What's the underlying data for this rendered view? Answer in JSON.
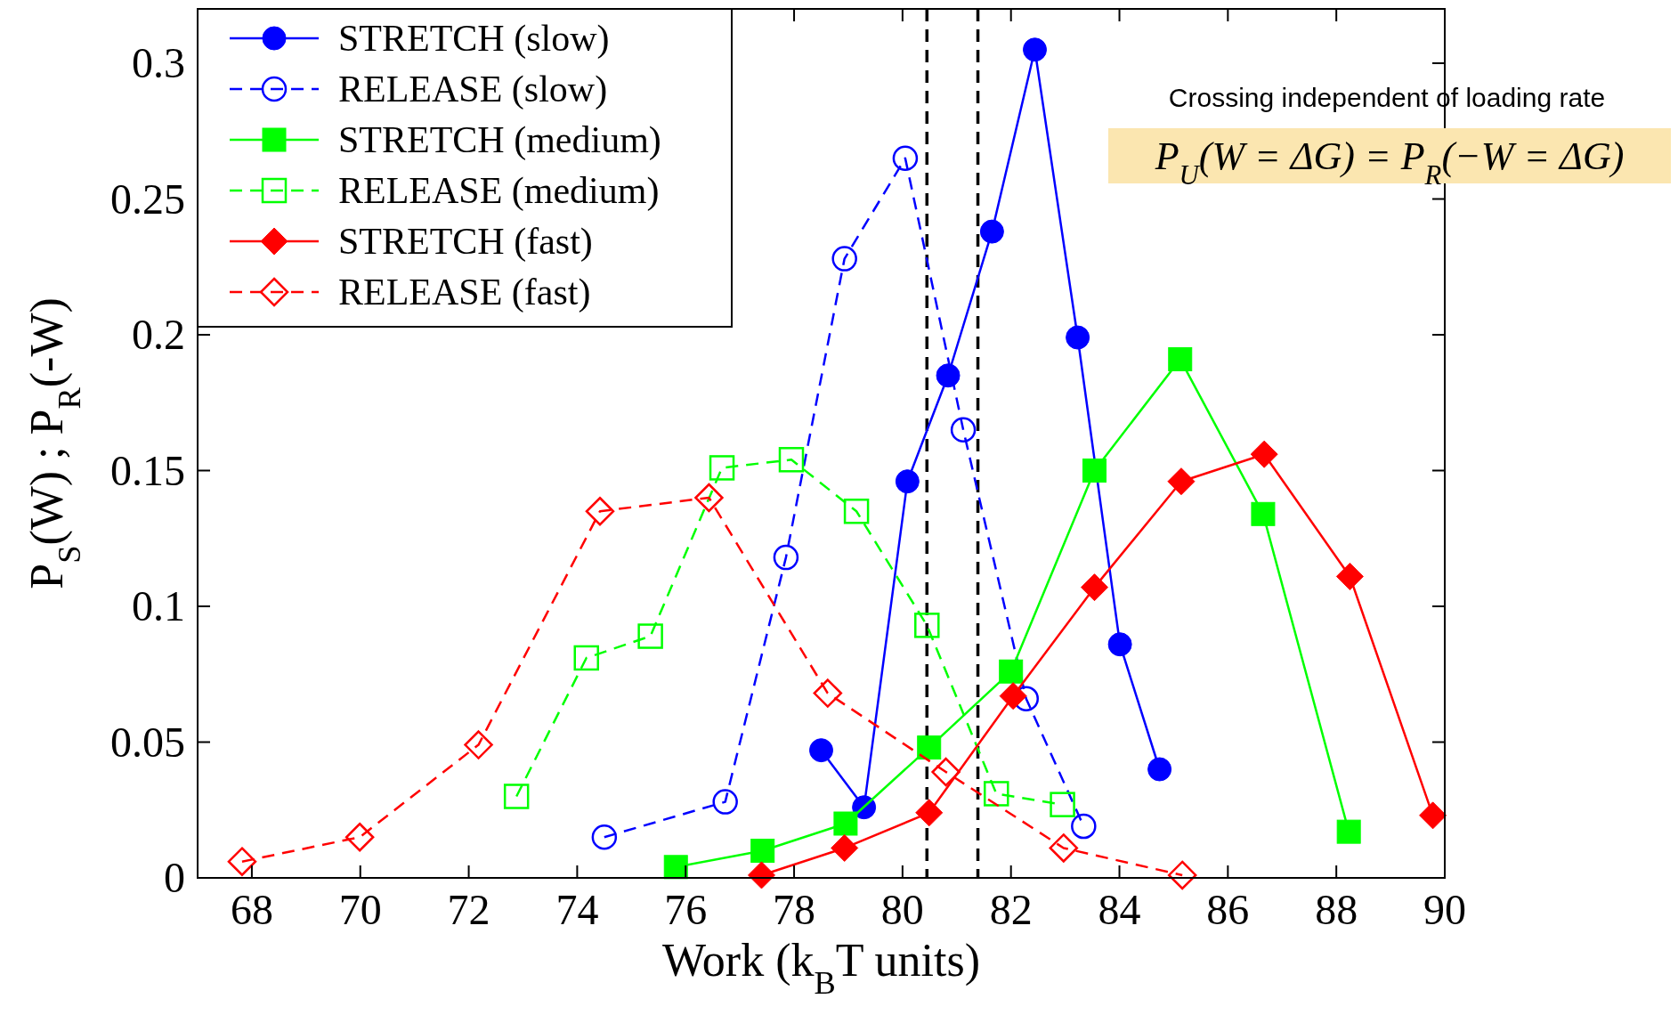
{
  "chart_data": {
    "type": "line",
    "xlabel": "Work (k$_{B}$T units)",
    "ylabel": "P$_{S}$(W) ; P$_{R}$(-W)",
    "xlim": [
      67,
      90
    ],
    "ylim": [
      0,
      0.32
    ],
    "xticks": [
      68,
      70,
      72,
      74,
      76,
      78,
      80,
      82,
      84,
      86,
      88,
      90
    ],
    "yticks": [
      0,
      0.05,
      0.1,
      0.15,
      0.2,
      0.25,
      0.3
    ],
    "legend": "top left",
    "series": [
      {
        "name": "STRETCH (slow)",
        "color": "#0000ff",
        "marker": "circle",
        "line_style": "solid",
        "x": [
          78.5,
          79.29,
          80.09,
          80.84,
          81.65,
          82.44,
          83.23,
          84.01,
          84.74
        ],
        "values": [
          0.047,
          0.026,
          0.146,
          0.185,
          0.238,
          0.305,
          0.199,
          0.086,
          0.04
        ]
      },
      {
        "name": "RELEASE (slow)",
        "color": "#0000ff",
        "marker": "circle",
        "line_style": "dashed",
        "x": [
          74.5,
          76.73,
          77.85,
          78.93,
          80.05,
          81.12,
          82.28,
          83.34
        ],
        "values": [
          0.015,
          0.028,
          0.118,
          0.228,
          0.265,
          0.165,
          0.066,
          0.019
        ]
      },
      {
        "name": "STRETCH (medium)",
        "color": "#00ff00",
        "marker": "square",
        "line_style": "solid",
        "x": [
          75.82,
          77.42,
          78.95,
          80.49,
          82.0,
          83.54,
          85.12,
          86.65,
          88.23
        ],
        "values": [
          0.004,
          0.01,
          0.02,
          0.048,
          0.076,
          0.15,
          0.191,
          0.134,
          0.017
        ]
      },
      {
        "name": "RELEASE (medium)",
        "color": "#00ff00",
        "marker": "square",
        "line_style": "dashed",
        "x": [
          72.88,
          74.17,
          75.35,
          76.67,
          77.95,
          79.15,
          80.45,
          81.73,
          82.95
        ],
        "values": [
          0.03,
          0.081,
          0.089,
          0.151,
          0.154,
          0.135,
          0.093,
          0.031,
          0.027
        ]
      },
      {
        "name": "STRETCH (fast)",
        "color": "#ff0000",
        "marker": "diamond",
        "line_style": "solid",
        "x": [
          77.4,
          78.93,
          80.49,
          82.04,
          83.54,
          85.14,
          86.67,
          88.25,
          89.78
        ],
        "values": [
          0.001,
          0.011,
          0.024,
          0.067,
          0.107,
          0.146,
          0.156,
          0.111,
          0.023
        ]
      },
      {
        "name": "RELEASE (fast)",
        "color": "#ff0000",
        "marker": "diamond",
        "line_style": "dashed",
        "x": [
          67.82,
          69.99,
          72.18,
          74.42,
          76.43,
          78.62,
          80.8,
          82.97,
          85.16
        ],
        "values": [
          0.006,
          0.015,
          0.049,
          0.135,
          0.14,
          0.068,
          0.039,
          0.011,
          0.001
        ]
      }
    ],
    "ref_lines": [
      {
        "axis": "x",
        "value": 80.45,
        "color": "#000000",
        "line_style": "dashed"
      },
      {
        "axis": "x",
        "value": 81.39,
        "color": "#000000",
        "line_style": "dashed"
      }
    ],
    "annotations": [
      "Crossing independent of loading rate",
      "P$_{U}$(W = ΔG) = P$_{R}$(−W = ΔG)"
    ]
  }
}
